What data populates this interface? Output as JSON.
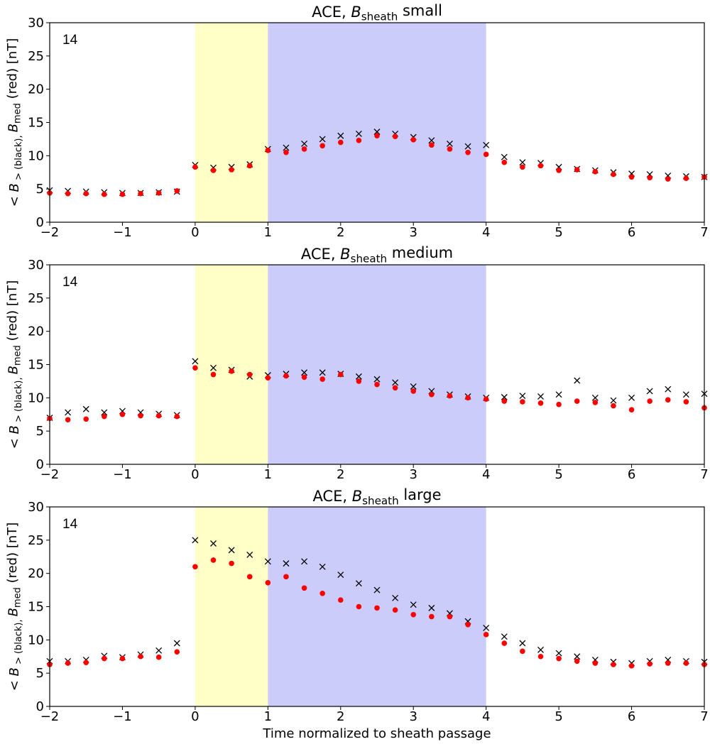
{
  "chart_data": [
    {
      "type": "scatter",
      "title_parts": [
        "ACE, ",
        "B",
        "sheath",
        " small"
      ],
      "ylabel_parts": [
        "< ",
        "B",
        " >  (black), ",
        "B",
        "med",
        " (red)  [nT]"
      ],
      "annotation": "14",
      "x": [
        -2,
        -1.75,
        -1.5,
        -1.25,
        -1,
        -0.75,
        -0.5,
        -0.25,
        0,
        0.25,
        0.5,
        0.75,
        1,
        1.25,
        1.5,
        1.75,
        2,
        2.25,
        2.5,
        2.75,
        3,
        3.25,
        3.5,
        3.75,
        4,
        4.25,
        4.5,
        4.75,
        5,
        5.25,
        5.5,
        5.75,
        6,
        6.25,
        6.5,
        6.75,
        7
      ],
      "series": [
        {
          "color": "#000000",
          "marker": "x",
          "values": [
            4.8,
            4.7,
            4.6,
            4.5,
            4.4,
            4.4,
            4.5,
            4.6,
            8.6,
            8.2,
            8.3,
            8.7,
            11,
            11.2,
            11.8,
            12.5,
            13,
            13.3,
            13.6,
            13.3,
            12.8,
            12.3,
            11.8,
            11.4,
            11.6,
            9.8,
            9,
            8.9,
            8.3,
            8,
            7.8,
            7.5,
            7.3,
            7.2,
            7,
            6.9,
            6.8
          ]
        },
        {
          "color": "#ff0000",
          "marker": "o",
          "values": [
            4.4,
            4.3,
            4.3,
            4.2,
            4.2,
            4.3,
            4.4,
            4.7,
            8.3,
            7.8,
            7.9,
            8.5,
            10.8,
            10.5,
            11,
            11.5,
            12,
            12.3,
            13,
            12.9,
            12.4,
            11.6,
            11,
            10.5,
            10.2,
            9,
            8.3,
            8.5,
            7.8,
            7.9,
            7.6,
            7.2,
            6.8,
            6.7,
            6.5,
            6.6,
            6.8
          ]
        }
      ],
      "spans": [
        {
          "xlim": [
            0,
            1
          ],
          "color": "#ffffc8"
        },
        {
          "xlim": [
            1,
            4
          ],
          "color": "#ccccfa"
        }
      ],
      "xlim": [
        -2,
        7
      ],
      "xticks": [
        {
          "value": -2,
          "label": "−2"
        },
        {
          "value": -1,
          "label": "−1"
        },
        0,
        1,
        2,
        3,
        4,
        5,
        6,
        7
      ],
      "ylim": [
        0,
        30
      ],
      "yticks": [
        0,
        5,
        10,
        15,
        20,
        25,
        30
      ]
    },
    {
      "type": "scatter",
      "title_parts": [
        "ACE, ",
        "B",
        "sheath",
        " medium"
      ],
      "ylabel_parts": [
        "< ",
        "B",
        " >  (black), ",
        "B",
        "med",
        " (red)  [nT]"
      ],
      "annotation": "14",
      "x": [
        -2,
        -1.75,
        -1.5,
        -1.25,
        -1,
        -0.75,
        -0.5,
        -0.25,
        0,
        0.25,
        0.5,
        0.75,
        1,
        1.25,
        1.5,
        1.75,
        2,
        2.25,
        2.5,
        2.75,
        3,
        3.25,
        3.5,
        3.75,
        4,
        4.25,
        4.5,
        4.75,
        5,
        5.25,
        5.5,
        5.75,
        6,
        6.25,
        6.5,
        6.75,
        7
      ],
      "series": [
        {
          "color": "#000000",
          "marker": "x",
          "values": [
            7,
            7.8,
            8.3,
            7.8,
            8,
            7.8,
            7.6,
            7.4,
            15.5,
            14.5,
            14.2,
            13.2,
            13.4,
            13.6,
            13.8,
            13.8,
            13.6,
            13.2,
            12.8,
            12.3,
            11.7,
            11,
            10.5,
            10.2,
            10,
            10.1,
            10.3,
            10.2,
            10.5,
            12.6,
            10,
            9.6,
            10,
            11,
            11.3,
            10.5,
            10.6
          ]
        },
        {
          "color": "#ff0000",
          "marker": "o",
          "values": [
            6.9,
            6.7,
            6.8,
            7.2,
            7.5,
            7.3,
            7.3,
            7.2,
            14.5,
            13.5,
            14,
            13.5,
            13,
            13.3,
            13.1,
            12.8,
            13.5,
            12.5,
            12,
            11.5,
            11,
            10.5,
            10.3,
            10,
            9.8,
            9.5,
            9.4,
            9.2,
            9,
            9.5,
            9.3,
            8.8,
            8.2,
            9.5,
            9.7,
            9.4,
            8.5
          ]
        }
      ],
      "spans": [
        {
          "xlim": [
            0,
            1
          ],
          "color": "#ffffc8"
        },
        {
          "xlim": [
            1,
            4
          ],
          "color": "#ccccfa"
        }
      ],
      "xlim": [
        -2,
        7
      ],
      "xticks": [
        {
          "value": -2,
          "label": "−2"
        },
        {
          "value": -1,
          "label": "−1"
        },
        0,
        1,
        2,
        3,
        4,
        5,
        6,
        7
      ],
      "ylim": [
        0,
        30
      ],
      "yticks": [
        0,
        5,
        10,
        15,
        20,
        25,
        30
      ]
    },
    {
      "type": "scatter",
      "title_parts": [
        "ACE, ",
        "B",
        "sheath",
        " large"
      ],
      "ylabel_parts": [
        "< ",
        "B",
        " >  (black), ",
        "B",
        "med",
        " (red)  [nT]"
      ],
      "xlabel": "Time normalized to sheath passage",
      "annotation": "14",
      "x": [
        -2,
        -1.75,
        -1.5,
        -1.25,
        -1,
        -0.75,
        -0.5,
        -0.25,
        0,
        0.25,
        0.5,
        0.75,
        1,
        1.25,
        1.5,
        1.75,
        2,
        2.25,
        2.5,
        2.75,
        3,
        3.25,
        3.5,
        3.75,
        4,
        4.25,
        4.5,
        4.75,
        5,
        5.25,
        5.5,
        5.75,
        6,
        6.25,
        6.5,
        6.75,
        7
      ],
      "series": [
        {
          "color": "#000000",
          "marker": "x",
          "values": [
            6.8,
            6.8,
            7,
            7.6,
            7.4,
            7.8,
            8.4,
            9.5,
            25,
            24.5,
            23.5,
            22.8,
            21.8,
            21.5,
            21.8,
            21,
            19.8,
            18.5,
            17.5,
            16.3,
            15.3,
            14.8,
            14,
            12.8,
            11.8,
            10.5,
            9.5,
            8.5,
            8,
            7.5,
            7,
            6.7,
            6.5,
            6.8,
            7,
            6.8,
            6.7
          ]
        },
        {
          "color": "#ff0000",
          "marker": "o",
          "values": [
            6.3,
            6.5,
            6.6,
            7.2,
            7.2,
            7.5,
            7.4,
            8.2,
            21,
            22,
            21.5,
            19.5,
            18.6,
            19.5,
            17.8,
            17,
            16,
            15,
            14.8,
            14.5,
            13.8,
            13.5,
            13.5,
            12.3,
            10.8,
            9.5,
            8.3,
            7.5,
            7.2,
            6.8,
            6.5,
            6.3,
            6.1,
            6.4,
            6.5,
            6.5,
            6.3
          ]
        }
      ],
      "spans": [
        {
          "xlim": [
            0,
            1
          ],
          "color": "#ffffc8"
        },
        {
          "xlim": [
            1,
            4
          ],
          "color": "#ccccfa"
        }
      ],
      "xlim": [
        -2,
        7
      ],
      "xticks": [
        {
          "value": -2,
          "label": "−2"
        },
        {
          "value": -1,
          "label": "−1"
        },
        0,
        1,
        2,
        3,
        4,
        5,
        6,
        7
      ],
      "ylim": [
        0,
        30
      ],
      "yticks": [
        0,
        5,
        10,
        15,
        20,
        25,
        30
      ]
    }
  ]
}
